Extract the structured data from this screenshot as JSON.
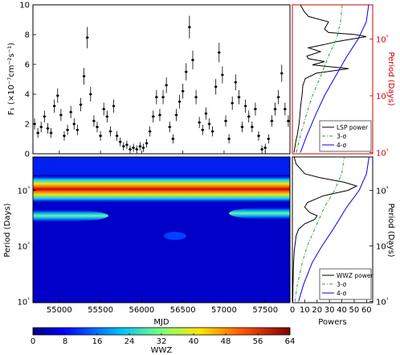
{
  "chart_data": [
    {
      "id": "lightcurve",
      "type": "scatter",
      "ylabel": "F₁ (×10⁻⁷cm⁻²s⁻¹)",
      "ylim": [
        0,
        10
      ],
      "xlim": [
        54680,
        57800
      ],
      "yticks": [
        "0",
        "2",
        "4",
        "6",
        "8",
        "10"
      ],
      "points_x": [
        54700,
        54740,
        54780,
        54820,
        54860,
        54900,
        54940,
        54980,
        55020,
        55060,
        55100,
        55140,
        55180,
        55220,
        55260,
        55300,
        55340,
        55380,
        55420,
        55460,
        55500,
        55540,
        55580,
        55620,
        55660,
        55700,
        55740,
        55780,
        55820,
        55860,
        55900,
        55940,
        55980,
        56020,
        56060,
        56100,
        56140,
        56180,
        56220,
        56260,
        56300,
        56340,
        56380,
        56420,
        56460,
        56500,
        56540,
        56580,
        56620,
        56660,
        56700,
        56740,
        56780,
        56820,
        56860,
        56900,
        56940,
        56980,
        57020,
        57060,
        57100,
        57140,
        57180,
        57220,
        57260,
        57300,
        57340,
        57380,
        57420,
        57460,
        57500,
        57540,
        57580,
        57620,
        57660,
        57700,
        57740,
        57780
      ],
      "points_y": [
        2.0,
        1.4,
        1.8,
        2.5,
        1.7,
        1.4,
        3.2,
        3.9,
        2.6,
        1.2,
        1.6,
        2.8,
        2.0,
        1.6,
        3.3,
        5.2,
        7.8,
        4.0,
        2.2,
        1.8,
        1.2,
        3.0,
        2.5,
        1.5,
        3.2,
        1.2,
        0.8,
        0.5,
        0.6,
        0.3,
        0.4,
        0.3,
        0.5,
        0.4,
        0.7,
        1.5,
        2.5,
        3.8,
        2.6,
        3.8,
        4.6,
        1.8,
        1.0,
        2.6,
        3.5,
        4.2,
        5.5,
        8.5,
        6.3,
        3.8,
        2.1,
        1.6,
        2.7,
        2.0,
        1.5,
        4.5,
        6.8,
        5.3,
        2.2,
        1.0,
        3.4,
        4.8,
        3.8,
        1.8,
        3.2,
        2.5,
        1.8,
        3.0,
        1.2,
        0.3,
        0.4,
        1.0,
        2.2,
        3.0,
        3.8,
        5.4,
        3.0,
        2.2
      ]
    },
    {
      "id": "lsp",
      "type": "line",
      "ylabel": "Period (Days)",
      "yscale": "log",
      "ylim": [
        9.5,
        4000
      ],
      "yticks": [
        "10¹",
        "10²",
        "10³"
      ],
      "legend_position": "bottom-right",
      "series": [
        {
          "name": "LSP power",
          "color": "#000000",
          "period": [
            10,
            12,
            15,
            20,
            30,
            40,
            60,
            80,
            100,
            150,
            200,
            250,
            300,
            350,
            400,
            450,
            500,
            600,
            700,
            800,
            900,
            1000,
            1100,
            1200,
            1300,
            1500,
            2000,
            2500,
            3000,
            4000
          ],
          "power": [
            0.02,
            0.03,
            0.04,
            0.06,
            0.08,
            0.09,
            0.1,
            0.11,
            0.12,
            0.13,
            0.16,
            0.3,
            0.7,
            0.25,
            0.4,
            0.2,
            0.18,
            0.35,
            0.2,
            0.4,
            0.55,
            0.75,
            0.92,
            0.78,
            0.45,
            0.4,
            0.45,
            0.2,
            0.15,
            0.1
          ]
        },
        {
          "name": "3-σ",
          "color": "#2ca02c",
          "period": [
            10,
            20,
            50,
            100,
            200,
            500,
            1000,
            2000,
            4000
          ],
          "power": [
            0.05,
            0.1,
            0.18,
            0.25,
            0.34,
            0.45,
            0.55,
            0.6,
            0.62
          ]
        },
        {
          "name": "4-σ",
          "color": "#0000ee",
          "period": [
            10,
            20,
            50,
            100,
            200,
            500,
            1000,
            2000,
            4000
          ],
          "power": [
            0.1,
            0.18,
            0.3,
            0.4,
            0.52,
            0.68,
            0.82,
            0.92,
            0.95
          ]
        }
      ]
    },
    {
      "id": "wwz-map",
      "type": "heatmap",
      "xlabel": "MJD",
      "ylabel": "Period (Days)",
      "yscale": "log",
      "xlim": [
        54680,
        57800
      ],
      "ylim": [
        9.5,
        4000
      ],
      "xticks": [
        "55000",
        "55500",
        "56000",
        "56500",
        "57000",
        "57500"
      ],
      "yticks": [
        "10¹",
        "10²",
        "10³"
      ],
      "features": [
        {
          "mjd_range": [
            54680,
            57800
          ],
          "period": 1200,
          "peak": 62
        },
        {
          "mjd_range": [
            54680,
            55500
          ],
          "period": 350,
          "peak": 30
        },
        {
          "mjd_range": [
            56800,
            57800
          ],
          "period": 380,
          "peak": 28
        }
      ]
    },
    {
      "id": "wwz-power",
      "type": "line",
      "xlabel": "Powers",
      "ylabel": "Period (Days)",
      "yscale": "log",
      "xlim": [
        0,
        65
      ],
      "xticks": [
        "0",
        "10",
        "20",
        "30",
        "40",
        "50",
        "60"
      ],
      "ylim": [
        9.5,
        4000
      ],
      "yticks": [
        "10¹",
        "10²",
        "10³"
      ],
      "legend_position": "bottom-right",
      "series": [
        {
          "name": "WWZ power",
          "color": "#000000",
          "period": [
            10,
            20,
            50,
            80,
            100,
            150,
            200,
            250,
            300,
            350,
            400,
            500,
            600,
            800,
            1000,
            1200,
            1400,
            1700,
            2000,
            3000,
            4000
          ],
          "power": [
            0.3,
            0.5,
            1.0,
            1.5,
            2.0,
            3.0,
            5.0,
            10.0,
            18.0,
            20.0,
            14.0,
            10.0,
            12.0,
            25.0,
            45.0,
            52.0,
            42.0,
            22.0,
            10.0,
            3.0,
            1.5
          ]
        },
        {
          "name": "3-σ",
          "color": "#2ca02c",
          "period": [
            10,
            20,
            50,
            100,
            200,
            500,
            1000,
            2000,
            4000
          ],
          "power": [
            2,
            4,
            8,
            12,
            18,
            26,
            34,
            40,
            42
          ]
        },
        {
          "name": "4-σ",
          "color": "#0000ee",
          "period": [
            10,
            20,
            50,
            100,
            200,
            500,
            1000,
            2000,
            4000
          ],
          "power": [
            5,
            9,
            16,
            24,
            33,
            44,
            54,
            60,
            62
          ]
        }
      ]
    },
    {
      "id": "colorbar",
      "type": "heatmap",
      "label": "WWZ",
      "range": [
        0,
        64
      ],
      "ticks": [
        "0",
        "8",
        "16",
        "24",
        "32",
        "40",
        "48",
        "56",
        "64"
      ],
      "colors": [
        "#00007f",
        "#0000e0",
        "#0040ff",
        "#0090ff",
        "#14e0ea",
        "#5cffa0",
        "#a0ff5c",
        "#e0f014",
        "#ffb000",
        "#ff6000",
        "#f01000",
        "#a00000"
      ]
    }
  ]
}
